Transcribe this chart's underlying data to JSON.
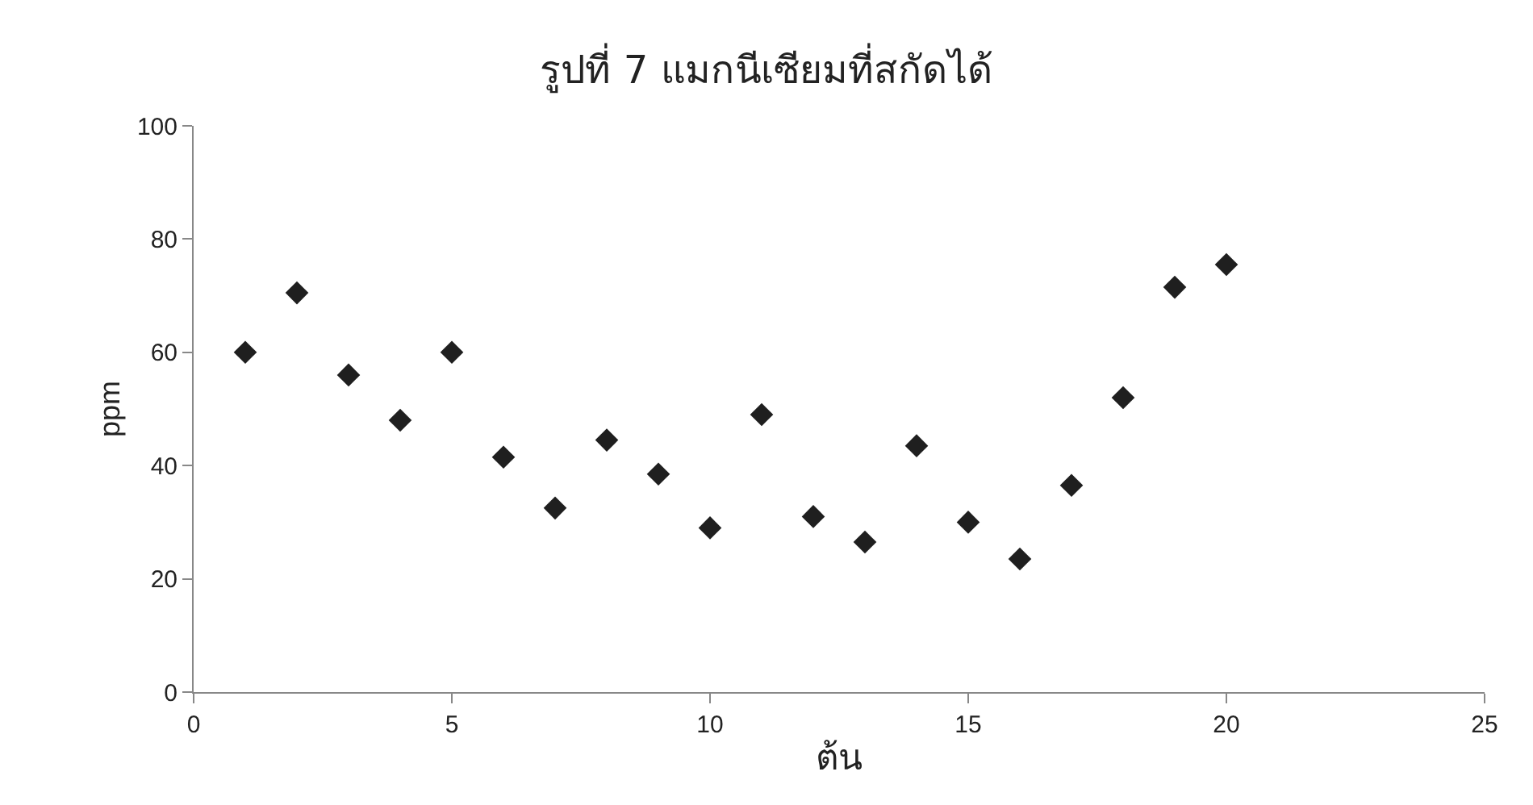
{
  "chart_data": {
    "type": "scatter",
    "title": "รูปที่ 7 แมกนีเซียมที่สกัดได้",
    "xlabel": "ต้น",
    "ylabel": "ppm",
    "x": [
      1,
      2,
      3,
      4,
      5,
      6,
      7,
      8,
      9,
      10,
      11,
      12,
      13,
      14,
      15,
      16,
      17,
      18,
      19,
      20
    ],
    "series": [
      {
        "color": "#1f1f1f",
        "values": [
          60,
          70.5,
          56,
          48,
          60,
          41.5,
          32.5,
          44.5,
          38.5,
          29,
          49,
          31,
          26.5,
          43.5,
          30,
          23.5,
          36.5,
          52,
          71.5,
          75.5
        ]
      }
    ],
    "xlim": [
      0,
      25
    ],
    "xticks": [
      0,
      5,
      10,
      15,
      20,
      25
    ],
    "ylim": [
      0,
      100
    ],
    "yticks": [
      0,
      20,
      40,
      60,
      80,
      100
    ],
    "grid": false,
    "marker": "diamond"
  }
}
